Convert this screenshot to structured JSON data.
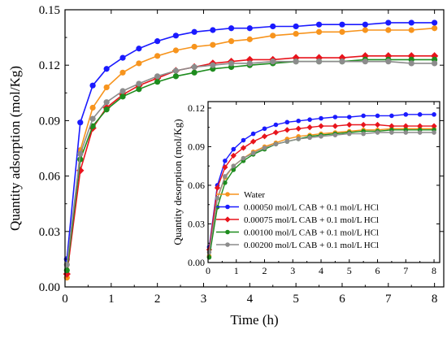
{
  "chart_data": [
    {
      "type": "line",
      "xlabel": "Time (h)",
      "ylabel": "Quantity adsorption (mol/Kg)",
      "xlim": [
        0,
        8.2
      ],
      "ylim": [
        0,
        0.15
      ],
      "xticks": [
        "0",
        "1",
        "2",
        "3",
        "4",
        "5",
        "6",
        "7",
        "8"
      ],
      "yticks": [
        "0.00",
        "0.03",
        "0.06",
        "0.09",
        "0.12",
        "0.15"
      ],
      "series": [
        {
          "name": "Water",
          "color": "#f7941d",
          "marker": "circle",
          "x": [
            0.04,
            0.33,
            0.6,
            0.9,
            1.25,
            1.6,
            2.0,
            2.4,
            2.8,
            3.2,
            3.6,
            4.0,
            4.5,
            5.0,
            5.5,
            6.0,
            6.5,
            7.0,
            7.5,
            8.0
          ],
          "y": [
            0.005,
            0.074,
            0.097,
            0.108,
            0.116,
            0.121,
            0.125,
            0.128,
            0.13,
            0.131,
            0.133,
            0.134,
            0.136,
            0.137,
            0.138,
            0.138,
            0.139,
            0.139,
            0.139,
            0.14
          ]
        },
        {
          "name": "0.00050 mol/L CAB + 0.1 mol/L HCl",
          "color": "#1a1aff",
          "marker": "circle",
          "x": [
            0.04,
            0.33,
            0.6,
            0.9,
            1.25,
            1.6,
            2.0,
            2.4,
            2.8,
            3.2,
            3.6,
            4.0,
            4.5,
            5.0,
            5.5,
            6.0,
            6.5,
            7.0,
            7.5,
            8.0
          ],
          "y": [
            0.015,
            0.089,
            0.109,
            0.118,
            0.124,
            0.129,
            0.133,
            0.136,
            0.138,
            0.139,
            0.14,
            0.14,
            0.141,
            0.141,
            0.142,
            0.142,
            0.142,
            0.143,
            0.143,
            0.143
          ]
        },
        {
          "name": "0.00075 mol/L CAB + 0.1 mol/L HCl",
          "color": "#e8141c",
          "marker": "diamond",
          "x": [
            0.04,
            0.33,
            0.6,
            0.9,
            1.25,
            1.6,
            2.0,
            2.4,
            2.8,
            3.2,
            3.6,
            4.0,
            4.5,
            5.0,
            5.5,
            6.0,
            6.5,
            7.0,
            7.5,
            8.0
          ],
          "y": [
            0.007,
            0.063,
            0.086,
            0.097,
            0.104,
            0.109,
            0.113,
            0.117,
            0.119,
            0.121,
            0.122,
            0.123,
            0.123,
            0.124,
            0.124,
            0.124,
            0.125,
            0.125,
            0.125,
            0.125
          ]
        },
        {
          "name": "0.00100 mol/L CAB + 0.1 mol/L HCl",
          "color": "#1e8c1e",
          "marker": "circle",
          "x": [
            0.04,
            0.33,
            0.6,
            0.9,
            1.25,
            1.6,
            2.0,
            2.4,
            2.8,
            3.2,
            3.6,
            4.0,
            4.5,
            5.0,
            5.5,
            6.0,
            6.5,
            7.0,
            7.5,
            8.0
          ],
          "y": [
            0.009,
            0.069,
            0.087,
            0.096,
            0.103,
            0.107,
            0.111,
            0.114,
            0.116,
            0.118,
            0.119,
            0.12,
            0.121,
            0.122,
            0.122,
            0.122,
            0.123,
            0.123,
            0.123,
            0.123
          ]
        },
        {
          "name": "0.00200 mol/L CAB + 0.1 mol/L HCl",
          "color": "#8c8c8c",
          "marker": "circle",
          "x": [
            0.04,
            0.33,
            0.6,
            0.9,
            1.25,
            1.6,
            2.0,
            2.4,
            2.8,
            3.2,
            3.6,
            4.0,
            4.5,
            5.0,
            5.5,
            6.0,
            6.5,
            7.0,
            7.5,
            8.0
          ],
          "y": [
            0.012,
            0.072,
            0.091,
            0.1,
            0.106,
            0.11,
            0.114,
            0.117,
            0.119,
            0.12,
            0.121,
            0.121,
            0.122,
            0.122,
            0.122,
            0.122,
            0.122,
            0.122,
            0.121,
            0.121
          ]
        }
      ]
    },
    {
      "type": "line",
      "xlabel": "",
      "ylabel": "Quantity desorption (mol/Kg)",
      "xlim": [
        0,
        8.2
      ],
      "ylim": [
        0,
        0.125
      ],
      "xticks": [
        "0",
        "1",
        "2",
        "3",
        "4",
        "5",
        "6",
        "7",
        "8"
      ],
      "yticks": [
        "0.00",
        "0.03",
        "0.06",
        "0.09",
        "0.12"
      ],
      "legend_position": "bottom-left inside inset",
      "series": [
        {
          "name": "Water",
          "color": "#f7941d",
          "marker": "circle",
          "x": [
            0.04,
            0.33,
            0.6,
            0.9,
            1.25,
            1.6,
            2.0,
            2.4,
            2.8,
            3.2,
            3.6,
            4.0,
            4.5,
            5.0,
            5.5,
            6.0,
            6.5,
            7.0,
            7.5,
            8.0
          ],
          "y": [
            0.005,
            0.05,
            0.066,
            0.075,
            0.081,
            0.086,
            0.09,
            0.093,
            0.096,
            0.098,
            0.099,
            0.1,
            0.101,
            0.102,
            0.103,
            0.103,
            0.104,
            0.104,
            0.104,
            0.104
          ]
        },
        {
          "name": "0.00050 mol/L CAB + 0.1 mol/L HCl",
          "color": "#1a1aff",
          "marker": "circle",
          "x": [
            0.04,
            0.33,
            0.6,
            0.9,
            1.25,
            1.6,
            2.0,
            2.4,
            2.8,
            3.2,
            3.6,
            4.0,
            4.5,
            5.0,
            5.5,
            6.0,
            6.5,
            7.0,
            7.5,
            8.0
          ],
          "y": [
            0.012,
            0.06,
            0.079,
            0.088,
            0.095,
            0.1,
            0.104,
            0.107,
            0.109,
            0.11,
            0.111,
            0.112,
            0.113,
            0.113,
            0.114,
            0.114,
            0.114,
            0.115,
            0.115,
            0.115
          ]
        },
        {
          "name": "0.00075 mol/L CAB + 0.1 mol/L HCl",
          "color": "#e8141c",
          "marker": "diamond",
          "x": [
            0.04,
            0.33,
            0.6,
            0.9,
            1.25,
            1.6,
            2.0,
            2.4,
            2.8,
            3.2,
            3.6,
            4.0,
            4.5,
            5.0,
            5.5,
            6.0,
            6.5,
            7.0,
            7.5,
            8.0
          ],
          "y": [
            0.01,
            0.058,
            0.074,
            0.083,
            0.089,
            0.094,
            0.098,
            0.101,
            0.103,
            0.104,
            0.105,
            0.106,
            0.106,
            0.107,
            0.107,
            0.107,
            0.106,
            0.106,
            0.106,
            0.106
          ]
        },
        {
          "name": "0.00100 mol/L CAB + 0.1 mol/L HCl",
          "color": "#1e8c1e",
          "marker": "circle",
          "x": [
            0.04,
            0.33,
            0.6,
            0.9,
            1.25,
            1.6,
            2.0,
            2.4,
            2.8,
            3.2,
            3.6,
            4.0,
            4.5,
            5.0,
            5.5,
            6.0,
            6.5,
            7.0,
            7.5,
            8.0
          ],
          "y": [
            0.004,
            0.043,
            0.062,
            0.072,
            0.079,
            0.084,
            0.088,
            0.092,
            0.094,
            0.096,
            0.098,
            0.099,
            0.1,
            0.101,
            0.102,
            0.102,
            0.103,
            0.103,
            0.103,
            0.103
          ]
        },
        {
          "name": "0.00200 mol/L CAB + 0.1 mol/L HCl",
          "color": "#8c8c8c",
          "marker": "circle",
          "x": [
            0.04,
            0.33,
            0.6,
            0.9,
            1.25,
            1.6,
            2.0,
            2.4,
            2.8,
            3.2,
            3.6,
            4.0,
            4.5,
            5.0,
            5.5,
            6.0,
            6.5,
            7.0,
            7.5,
            8.0
          ],
          "y": [
            0.008,
            0.05,
            0.067,
            0.075,
            0.081,
            0.085,
            0.089,
            0.092,
            0.094,
            0.096,
            0.097,
            0.098,
            0.099,
            0.1,
            0.1,
            0.101,
            0.101,
            0.101,
            0.101,
            0.101
          ]
        }
      ]
    }
  ]
}
